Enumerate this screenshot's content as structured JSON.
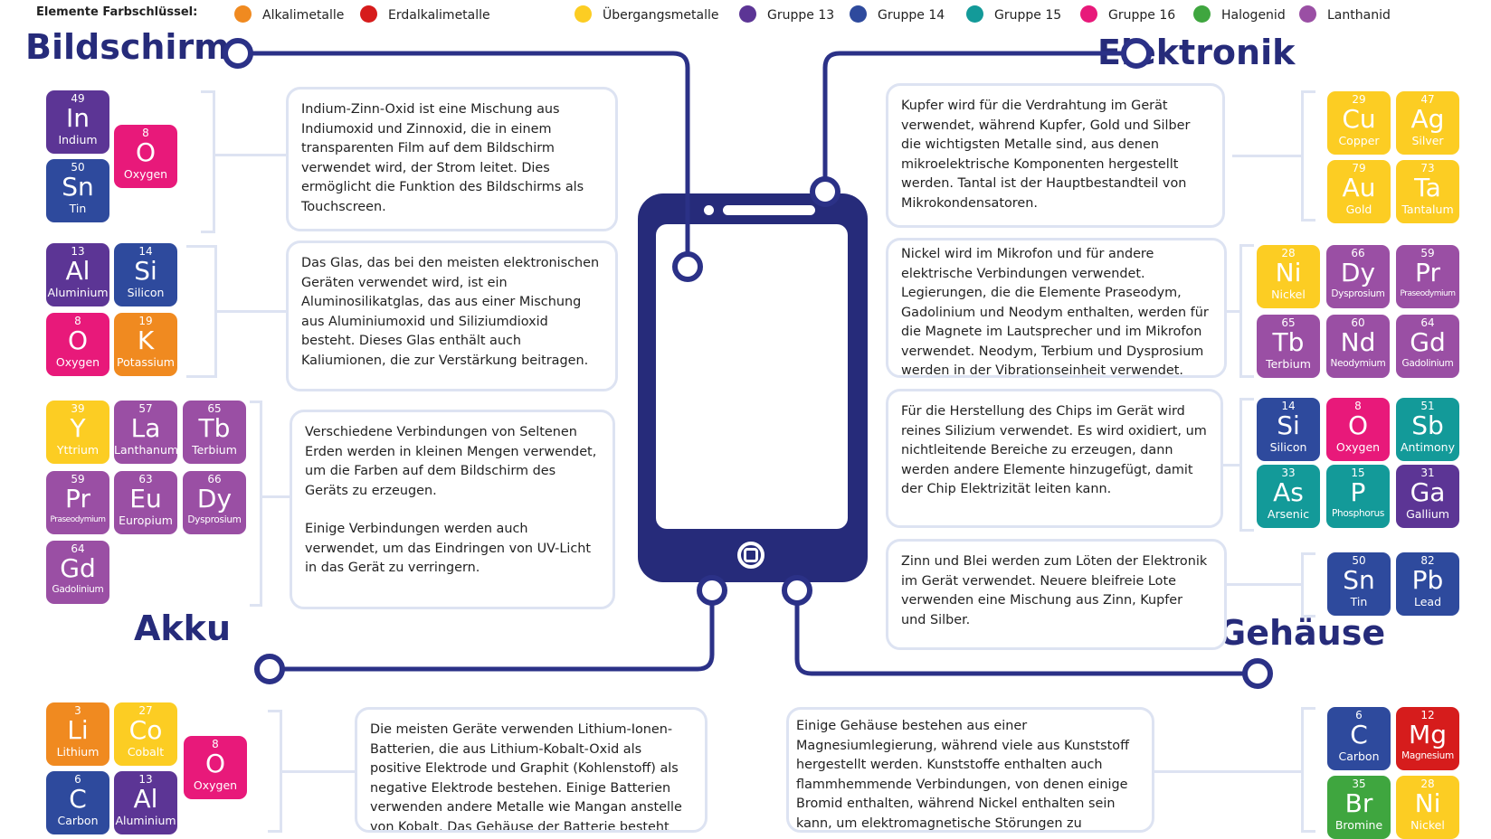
{
  "legend": {
    "title": "Elemente Farbschlüssel:",
    "items": [
      {
        "label": "Alkalimetalle",
        "color": "#f08a20"
      },
      {
        "label": "Erdalkalimetalle",
        "color": "#d61c1c"
      },
      {
        "label": "Übergangsmetalle",
        "color": "#fccd23"
      },
      {
        "label": "Gruppe 13",
        "color": "#5c3595"
      },
      {
        "label": "Gruppe 14",
        "color": "#2e4a9d"
      },
      {
        "label": "Gruppe 15",
        "color": "#139a99"
      },
      {
        "label": "Gruppe 16",
        "color": "#e8197a"
      },
      {
        "label": "Halogenid",
        "color": "#3fa63f"
      },
      {
        "label": "Lanthanid",
        "color": "#9a4fa4"
      }
    ]
  },
  "colors": {
    "navy": "#262b7a",
    "connector": "#2b3187",
    "box_border": "#dde3f2"
  },
  "sections": {
    "bildschirm": "Bildschirm",
    "elektronik": "Elektronik",
    "akku": "Akku",
    "gehaeuse": "Gehäuse"
  },
  "texts": {
    "ito": "Indium-Zinn-Oxid ist eine Mischung aus Indiumoxid und Zinnoxid, die in einem transparenten Film auf dem Bildschirm verwendet wird, der Strom leitet. Dies ermöglicht die Funktion des Bildschirms als Touchscreen.",
    "glass": "Das Glas, das bei den meisten elektronischen Geräten verwendet wird, ist ein Aluminosilikatglas, das aus einer Mischung aus Aluminiumoxid und Siliziumdioxid besteht. Dieses Glas enthält auch Kaliumionen, die zur Verstärkung beitragen.",
    "rare_earth_1": "Verschiedene Verbindungen von Seltenen Erden werden in kleinen Mengen verwendet, um die Farben auf dem Bildschirm des Geräts zu erzeugen.",
    "rare_earth_2": "Einige Verbindungen werden auch verwendet, um das Eindringen von UV-Licht in das Gerät zu verringern.",
    "battery": "Die meisten Geräte verwenden Lithium-Ionen-Batterien, die aus Lithium-Kobalt-Oxid als positive Elektrode und Graphit (Kohlenstoff) als negative Elektrode bestehen. Einige Batterien verwenden andere Metalle wie Mangan anstelle von Kobalt. Das Gehäuse der Batterie besteht aus Aluminium.",
    "copper": "Kupfer wird für die Verdrahtung im Gerät verwendet, während Kupfer, Gold und Silber die wichtigsten Metalle sind, aus denen mikroelektrische Komponenten hergestellt werden. Tantal ist der Hauptbestandteil von Mikrokondensatoren.",
    "nickel": "Nickel wird im Mikrofon und für andere elektrische Verbindungen verwendet. Legierungen, die die Elemente Praseodym, Gadolinium und Neodym enthalten, werden für die Magnete im Lautsprecher und im Mikrofon verwendet. Neodym, Terbium und Dysprosium werden in der Vibrationseinheit verwendet.",
    "chip": "Für die Herstellung des Chips im Gerät wird reines Silizium verwendet. Es wird oxidiert, um nichtleitende Bereiche zu erzeugen, dann werden andere Elemente hinzugefügt, damit der Chip Elektrizität leiten kann.",
    "solder": "Zinn und Blei werden zum Löten der Elektronik im Gerät verwendet. Neuere bleifreie Lote verwenden eine Mischung aus Zinn, Kupfer und Silber.",
    "casing": "Einige Gehäuse bestehen aus einer Magnesiumlegierung, während viele aus Kunststoff hergestellt werden. Kunststoffe enthalten auch flammhemmende Verbindungen, von denen einige Bromid enthalten, während Nickel enthalten sein kann, um elektromagnetische Störungen zu reduzieren."
  },
  "elements": [
    {
      "number": "49",
      "symbol": "In",
      "name": "Indium",
      "group": "g13"
    },
    {
      "number": "8",
      "symbol": "O",
      "name": "Oxygen",
      "group": "g16"
    },
    {
      "number": "50",
      "symbol": "Sn",
      "name": "Tin",
      "group": "g14"
    },
    {
      "number": "13",
      "symbol": "Al",
      "name": "Aluminium",
      "group": "g13"
    },
    {
      "number": "14",
      "symbol": "Si",
      "name": "Silicon",
      "group": "g14"
    },
    {
      "number": "8",
      "symbol": "O",
      "name": "Oxygen",
      "group": "g16"
    },
    {
      "number": "19",
      "symbol": "K",
      "name": "Potassium",
      "group": "alkali"
    },
    {
      "number": "39",
      "symbol": "Y",
      "name": "Yttrium",
      "group": "trans"
    },
    {
      "number": "57",
      "symbol": "La",
      "name": "Lanthanum",
      "group": "lanth"
    },
    {
      "number": "65",
      "symbol": "Tb",
      "name": "Terbium",
      "group": "lanth"
    },
    {
      "number": "59",
      "symbol": "Pr",
      "name": "Praseodymium",
      "group": "lanth",
      "size": "xs"
    },
    {
      "number": "63",
      "symbol": "Eu",
      "name": "Europium",
      "group": "lanth"
    },
    {
      "number": "66",
      "symbol": "Dy",
      "name": "Dysprosium",
      "group": "lanth",
      "size": "sm"
    },
    {
      "number": "64",
      "symbol": "Gd",
      "name": "Gadolinium",
      "group": "lanth",
      "size": "sm"
    },
    {
      "number": "3",
      "symbol": "Li",
      "name": "Lithium",
      "group": "alkali"
    },
    {
      "number": "27",
      "symbol": "Co",
      "name": "Cobalt",
      "group": "trans"
    },
    {
      "number": "8",
      "symbol": "O",
      "name": "Oxygen",
      "group": "g16"
    },
    {
      "number": "6",
      "symbol": "C",
      "name": "Carbon",
      "group": "g14"
    },
    {
      "number": "13",
      "symbol": "Al",
      "name": "Aluminium",
      "group": "g13"
    },
    {
      "number": "29",
      "symbol": "Cu",
      "name": "Copper",
      "group": "trans"
    },
    {
      "number": "47",
      "symbol": "Ag",
      "name": "Silver",
      "group": "trans"
    },
    {
      "number": "79",
      "symbol": "Au",
      "name": "Gold",
      "group": "trans"
    },
    {
      "number": "73",
      "symbol": "Ta",
      "name": "Tantalum",
      "group": "trans"
    },
    {
      "number": "28",
      "symbol": "Ni",
      "name": "Nickel",
      "group": "trans"
    },
    {
      "number": "66",
      "symbol": "Dy",
      "name": "Dysprosium",
      "group": "lanth",
      "size": "sm"
    },
    {
      "number": "59",
      "symbol": "Pr",
      "name": "Praseodymium",
      "group": "lanth",
      "size": "xs"
    },
    {
      "number": "65",
      "symbol": "Tb",
      "name": "Terbium",
      "group": "lanth"
    },
    {
      "number": "60",
      "symbol": "Nd",
      "name": "Neodymium",
      "group": "lanth",
      "size": "sm"
    },
    {
      "number": "64",
      "symbol": "Gd",
      "name": "Gadolinium",
      "group": "lanth",
      "size": "sm"
    },
    {
      "number": "14",
      "symbol": "Si",
      "name": "Silicon",
      "group": "g14"
    },
    {
      "number": "8",
      "symbol": "O",
      "name": "Oxygen",
      "group": "g16"
    },
    {
      "number": "51",
      "symbol": "Sb",
      "name": "Antimony",
      "group": "g15"
    },
    {
      "number": "33",
      "symbol": "As",
      "name": "Arsenic",
      "group": "g15"
    },
    {
      "number": "15",
      "symbol": "P",
      "name": "Phosphorus",
      "group": "g15",
      "size": "sm"
    },
    {
      "number": "31",
      "symbol": "Ga",
      "name": "Gallium",
      "group": "g13"
    },
    {
      "number": "50",
      "symbol": "Sn",
      "name": "Tin",
      "group": "g14"
    },
    {
      "number": "82",
      "symbol": "Pb",
      "name": "Lead",
      "group": "g14"
    },
    {
      "number": "6",
      "symbol": "C",
      "name": "Carbon",
      "group": "g14"
    },
    {
      "number": "12",
      "symbol": "Mg",
      "name": "Magnesium",
      "group": "earth",
      "size": "sm"
    },
    {
      "number": "35",
      "symbol": "Br",
      "name": "Bromine",
      "group": "halo"
    },
    {
      "number": "28",
      "symbol": "Ni",
      "name": "Nickel",
      "group": "trans"
    }
  ]
}
